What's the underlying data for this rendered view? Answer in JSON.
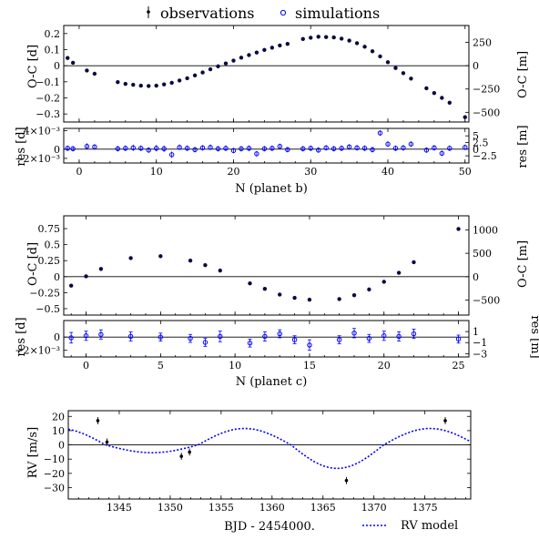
{
  "legend": {
    "observations": "observations",
    "simulations": "simulations",
    "rv_model": "RV model"
  },
  "colors": {
    "obs": "#000000",
    "sim": "#0000ff",
    "fit": "#0a0a40"
  },
  "chart_data": [
    {
      "id": "ttv_b",
      "type": "scatter",
      "xlabel": "N (planet b)",
      "ylabel": "O-C [d]",
      "ylabel_right": "O-C [m]",
      "xlim": [
        -2,
        50.5
      ],
      "ylim": [
        -0.35,
        0.25
      ],
      "xticks": [
        0,
        10,
        20,
        30,
        40,
        50
      ],
      "yticks": [
        -0.3,
        -0.2,
        -0.1,
        0,
        0.1,
        0.2
      ],
      "ytick_labels": [
        "−0.3",
        "−0.2",
        "−0.1",
        "0",
        "0.1",
        "0.2"
      ],
      "yticks_right": [
        -500,
        -250,
        0,
        250
      ],
      "yticks_right_labels": [
        "−500",
        "−250",
        "0",
        "250"
      ],
      "x": [
        -1.5,
        -0.8,
        1,
        2,
        5,
        6,
        7,
        8,
        9,
        10,
        11,
        12,
        13,
        14,
        15,
        16,
        17,
        18,
        19,
        20,
        21,
        22,
        23,
        24,
        25,
        26,
        27,
        29,
        30,
        31,
        32,
        33,
        34,
        35,
        36,
        37,
        38,
        39,
        40,
        41,
        42,
        43,
        45,
        46,
        47,
        48,
        50
      ],
      "y": [
        0.048,
        0.018,
        -0.03,
        -0.05,
        -0.102,
        -0.113,
        -0.118,
        -0.124,
        -0.126,
        -0.124,
        -0.116,
        -0.106,
        -0.092,
        -0.078,
        -0.06,
        -0.042,
        -0.022,
        -0.004,
        0.014,
        0.032,
        0.05,
        0.066,
        0.082,
        0.098,
        0.112,
        0.126,
        0.136,
        0.166,
        0.174,
        0.18,
        0.178,
        0.176,
        0.168,
        0.156,
        0.14,
        0.118,
        0.09,
        0.058,
        0.022,
        -0.014,
        -0.046,
        -0.08,
        -0.14,
        -0.17,
        -0.2,
        -0.23,
        -0.32
      ]
    },
    {
      "id": "res_b",
      "type": "scatter",
      "ylabel": "res [d]",
      "ylabel_right": "res [m]",
      "xlim": [
        -2,
        50.5
      ],
      "ylim": [
        -0.003,
        0.0045
      ],
      "xticks": [
        0,
        10,
        20,
        30,
        40,
        50
      ],
      "yticks": [
        -0.002,
        0,
        0.004
      ],
      "ytick_labels": [
        "−2×10⁻³",
        "0",
        "4×10⁻³"
      ],
      "yticks_right": [
        -2.5,
        0,
        2.5,
        5
      ],
      "yticks_right_labels": [
        "−2.5",
        "0",
        "2.5",
        "5"
      ],
      "x": [
        -1.5,
        -0.8,
        1,
        2,
        5,
        6,
        7,
        8,
        9,
        10,
        11,
        12,
        13,
        14,
        15,
        16,
        17,
        18,
        19,
        20,
        21,
        22,
        23,
        24,
        25,
        26,
        27,
        29,
        30,
        31,
        32,
        33,
        34,
        35,
        36,
        37,
        38,
        39,
        40,
        41,
        42,
        43,
        45,
        46,
        47,
        48,
        50
      ],
      "y": [
        0.0002,
        0.0001,
        0.0006,
        0.0005,
        0.0001,
        0.0002,
        0.0003,
        0.0002,
        -0.0002,
        0.0002,
        0.0001,
        -0.0012,
        0.0004,
        0.0002,
        -0.0001,
        0.0003,
        0.0004,
        0.0001,
        0.0002,
        -0.0003,
        0.0001,
        0.0002,
        -0.001,
        0.0001,
        0.0002,
        0.0006,
        -0.0001,
        0.0001,
        0.0002,
        -0.0002,
        0.0003,
        0.0001,
        0.0002,
        0.0005,
        0.0003,
        0.0002,
        -0.0001,
        0.0035,
        0.0011,
        0.0002,
        0.0003,
        0.0011,
        -0.0002,
        0.0003,
        -0.0009,
        0.0002,
        0.0004
      ],
      "err": [
        0.0006,
        0.0006,
        0.0007,
        0.0006,
        0.0006,
        0.0006,
        0.0007,
        0.0006,
        0.0006,
        0.0007,
        0.0007,
        0.0007,
        0.0006,
        0.0006,
        0.0006,
        0.0006,
        0.0006,
        0.0006,
        0.0006,
        0.0006,
        0.0006,
        0.0006,
        0.0006,
        0.0006,
        0.0006,
        0.0006,
        0.0006,
        0.0006,
        0.0006,
        0.0006,
        0.0006,
        0.0006,
        0.0006,
        0.0006,
        0.0006,
        0.0006,
        0.0006,
        0.0006,
        0.0006,
        0.0006,
        0.0006,
        0.0006,
        0.0006,
        0.0006,
        0.0006,
        0.0006,
        0.0006
      ]
    },
    {
      "id": "ttv_c",
      "type": "scatter",
      "xlabel": "N (planet c)",
      "ylabel": "O-C [d]",
      "ylabel_right": "O-C [m]",
      "xlim": [
        -1.5,
        25.7
      ],
      "ylim": [
        -0.6,
        0.95
      ],
      "xticks": [
        0,
        5,
        10,
        15,
        20,
        25
      ],
      "yticks": [
        -0.5,
        -0.25,
        0,
        0.25,
        0.5,
        0.75
      ],
      "ytick_labels": [
        "−0.5",
        "−0.25",
        "0",
        "0.25",
        "0.5",
        "0.75"
      ],
      "yticks_right": [
        -500,
        0,
        500,
        1000
      ],
      "yticks_right_labels": [
        "−500",
        "0",
        "500",
        "1000"
      ],
      "x": [
        -1,
        0,
        1,
        3,
        5,
        7,
        8,
        9,
        11,
        12,
        13,
        14,
        15,
        17,
        18,
        19,
        20,
        21,
        22,
        25
      ],
      "y": [
        -0.14,
        0.005,
        0.12,
        0.29,
        0.32,
        0.25,
        0.18,
        0.095,
        -0.105,
        -0.19,
        -0.28,
        -0.33,
        -0.36,
        -0.35,
        -0.29,
        -0.2,
        -0.08,
        0.06,
        0.225,
        0.745
      ]
    },
    {
      "id": "res_c",
      "type": "scatter",
      "ylabel": "res [d]",
      "ylabel_right": "res [m]",
      "xlim": [
        -1.5,
        25.7
      ],
      "ylim": [
        -0.003,
        0.0025
      ],
      "xticks": [
        0,
        5,
        10,
        15,
        20,
        25
      ],
      "yticks": [
        -0.002,
        0
      ],
      "ytick_labels": [
        "−2×10⁻³",
        "0"
      ],
      "yticks_right": [
        -3,
        -1,
        1
      ],
      "yticks_right_labels": [
        "−3",
        "−1",
        "1"
      ],
      "x": [
        -1,
        0,
        1,
        3,
        5,
        7,
        8,
        9,
        11,
        12,
        13,
        14,
        15,
        17,
        18,
        19,
        20,
        21,
        22,
        25
      ],
      "y": [
        -0.0001,
        0.0002,
        0.0004,
        0.0001,
        0.0,
        -0.0002,
        -0.0008,
        0.0001,
        -0.0009,
        0.0001,
        0.0005,
        -0.0004,
        -0.0012,
        -0.0004,
        0.0006,
        -0.0002,
        0.0002,
        0.0001,
        0.0005,
        -0.0003
      ],
      "err": [
        0.0008,
        0.0007,
        0.0007,
        0.0007,
        0.0006,
        0.0006,
        0.0006,
        0.0008,
        0.0006,
        0.0007,
        0.0006,
        0.0006,
        0.0008,
        0.0006,
        0.0007,
        0.0006,
        0.0007,
        0.0007,
        0.0007,
        0.0006
      ]
    },
    {
      "id": "rv",
      "type": "line",
      "xlabel": "BJD - 2454000.",
      "ylabel": "RV [m/s]",
      "xlim": [
        1340,
        1379.5
      ],
      "ylim": [
        -38,
        24
      ],
      "xticks": [
        1345,
        1350,
        1355,
        1360,
        1365,
        1370,
        1375
      ],
      "yticks": [
        -30,
        -20,
        -10,
        0,
        10,
        20
      ],
      "ytick_labels": [
        "−30",
        "−20",
        "−10",
        "0",
        "10",
        "20"
      ],
      "obs_x": [
        1342.9,
        1343.8,
        1351.1,
        1351.9,
        1367.3,
        1377.0
      ],
      "obs_y": [
        17,
        2,
        -8,
        -5,
        -25,
        17
      ],
      "obs_err": [
        2.5,
        2.5,
        2.5,
        2.5,
        2.5,
        2.5
      ],
      "model_period": 18.2,
      "model_amp": [
        5.5,
        11.5
      ],
      "model": "RV model"
    }
  ]
}
